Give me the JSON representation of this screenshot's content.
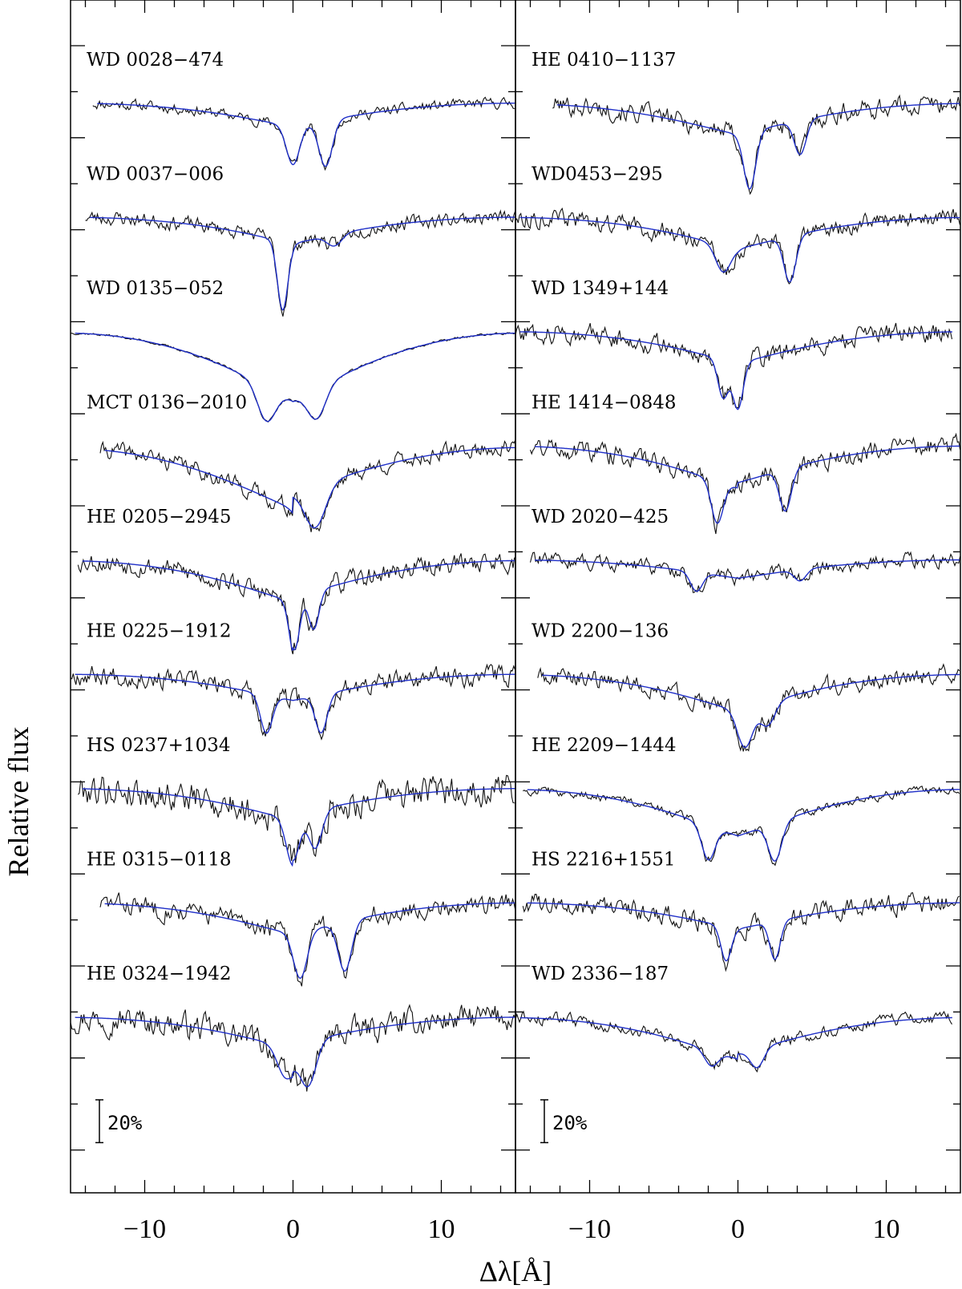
{
  "chart_data": {
    "type": "line",
    "ylabel": "Relative flux",
    "xlabel": "Δλ[Å]",
    "xlim": [
      -15,
      15
    ],
    "xticks": [
      -10,
      0,
      10
    ],
    "grid": false,
    "colors": {
      "observed": "#111111",
      "model": "#1f2fc8",
      "axes": "#000000"
    },
    "scale_bar": {
      "label": "20%",
      "fraction": 0.2
    },
    "panels": [
      {
        "spectra": [
          {
            "name": "WD 0028−474",
            "x_start": -13.5,
            "x_end": 15,
            "cont_left": 0.45,
            "cont_right": 0.45,
            "width": 5,
            "lines": [
              {
                "pos": 0,
                "depth": 0.5,
                "w": 0.45
              },
              {
                "pos": 2.2,
                "depth": 0.6,
                "w": 0.45
              }
            ],
            "noise": 0.22,
            "seed": 11
          },
          {
            "name": "WD 0037−006",
            "x_start": -14,
            "x_end": 15,
            "cont_left": 0.5,
            "cont_right": 0.5,
            "width": 4,
            "lines": [
              {
                "pos": -0.7,
                "depth": 0.9,
                "w": 0.35
              },
              {
                "pos": 2.8,
                "depth": 0.15,
                "w": 0.5
              }
            ],
            "noise": 0.3,
            "seed": 23
          },
          {
            "name": "WD 0135−052",
            "x_start": -15,
            "x_end": 15,
            "cont_left": 1.3,
            "cont_right": 1.3,
            "width": 6,
            "lines": [
              {
                "pos": -1.8,
                "depth": 0.45,
                "w": 0.6
              },
              {
                "pos": 1.6,
                "depth": 0.4,
                "w": 0.6
              }
            ],
            "noise": 0.05,
            "seed": 37
          },
          {
            "name": "MCT 0136−2010",
            "x_start": -13,
            "x_end": 15,
            "cont_left": 1.2,
            "cont_right": 0.9,
            "width": 8,
            "lines": [
              {
                "pos": 1.5,
                "depth": 0.55,
                "w": 0.7
              }
            ],
            "noise": 0.35,
            "seed": 41
          },
          {
            "name": "HE 0205−2945",
            "x_start": -14.5,
            "x_end": 15,
            "cont_left": 0.8,
            "cont_right": 0.7,
            "width": 6,
            "lines": [
              {
                "pos": 0.1,
                "depth": 0.7,
                "w": 0.35
              },
              {
                "pos": 1.4,
                "depth": 0.5,
                "w": 0.35
              }
            ],
            "noise": 0.42,
            "seed": 53
          },
          {
            "name": "HE 0225−1912",
            "x_start": -15,
            "x_end": 15,
            "cont_left": 0.5,
            "cont_right": 0.5,
            "width": 5,
            "lines": [
              {
                "pos": -1.8,
                "depth": 0.5,
                "w": 0.4
              },
              {
                "pos": 1.9,
                "depth": 0.5,
                "w": 0.4
              }
            ],
            "noise": 0.42,
            "seed": 67
          },
          {
            "name": "HS 0237+1034",
            "x_start": -14.5,
            "x_end": 15,
            "cont_left": 0.6,
            "cont_right": 0.5,
            "width": 5,
            "lines": [
              {
                "pos": 0,
                "depth": 0.6,
                "w": 0.45
              },
              {
                "pos": 1.5,
                "depth": 0.5,
                "w": 0.45
              }
            ],
            "noise": 0.65,
            "seed": 79
          },
          {
            "name": "HE 0315−0118",
            "x_start": -13,
            "x_end": 15,
            "cont_left": 0.6,
            "cont_right": 0.6,
            "width": 5,
            "lines": [
              {
                "pos": 0.5,
                "depth": 0.6,
                "w": 0.45
              },
              {
                "pos": 3.5,
                "depth": 0.65,
                "w": 0.45
              }
            ],
            "noise": 0.42,
            "seed": 83
          },
          {
            "name": "HE 0324−1942",
            "x_start": -15,
            "x_end": 15,
            "cont_left": 0.6,
            "cont_right": 0.5,
            "width": 6,
            "lines": [
              {
                "pos": -0.5,
                "depth": 0.4,
                "w": 0.55
              },
              {
                "pos": 1,
                "depth": 0.6,
                "w": 0.55
              }
            ],
            "noise": 0.55,
            "seed": 97
          }
        ]
      },
      {
        "spectra": [
          {
            "name": "HE 0410−1137",
            "x_start": -12.5,
            "x_end": 15,
            "cont_left": 0.6,
            "cont_right": 0.6,
            "width": 6,
            "lines": [
              {
                "pos": 0.8,
                "depth": 0.75,
                "w": 0.4
              },
              {
                "pos": 4.2,
                "depth": 0.45,
                "w": 0.4
              }
            ],
            "noise": 0.42,
            "seed": 101
          },
          {
            "name": "WD0453−295",
            "x_start": -15,
            "x_end": 15,
            "cont_left": 0.6,
            "cont_right": 0.6,
            "width": 5,
            "lines": [
              {
                "pos": -1,
                "depth": 0.35,
                "w": 0.5
              },
              {
                "pos": 3.5,
                "depth": 0.6,
                "w": 0.4
              }
            ],
            "noise": 0.38,
            "seed": 113
          },
          {
            "name": "WD 1349+144",
            "x_start": -15,
            "x_end": 14.5,
            "cont_left": 0.6,
            "cont_right": 0.6,
            "width": 5,
            "lines": [
              {
                "pos": -1,
                "depth": 0.5,
                "w": 0.35
              },
              {
                "pos": 0,
                "depth": 0.6,
                "w": 0.35
              }
            ],
            "noise": 0.42,
            "seed": 127
          },
          {
            "name": "HE 1414−0848",
            "x_start": -14,
            "x_end": 15,
            "cont_left": 0.8,
            "cont_right": 0.7,
            "width": 5,
            "lines": [
              {
                "pos": -1.4,
                "depth": 0.55,
                "w": 0.4
              },
              {
                "pos": 3.2,
                "depth": 0.55,
                "w": 0.4
              }
            ],
            "noise": 0.42,
            "seed": 131
          },
          {
            "name": "WD 2020−425",
            "x_start": -14,
            "x_end": 15,
            "cont_left": 0.35,
            "cont_right": 0.35,
            "width": 5,
            "lines": [
              {
                "pos": -2.8,
                "depth": 0.25,
                "w": 0.4
              },
              {
                "pos": 4.2,
                "depth": 0.15,
                "w": 0.4
              }
            ],
            "noise": 0.3,
            "seed": 139
          },
          {
            "name": "WD 2200−136",
            "x_start": -13.5,
            "x_end": 15,
            "cont_left": 0.7,
            "cont_right": 0.7,
            "width": 5,
            "lines": [
              {
                "pos": 0.5,
                "depth": 0.5,
                "w": 0.5
              },
              {
                "pos": 2,
                "depth": 0.3,
                "w": 0.5
              }
            ],
            "noise": 0.38,
            "seed": 149
          },
          {
            "name": "HE 2209−1444",
            "x_start": -14.5,
            "x_end": 15,
            "cont_left": 0.9,
            "cont_right": 0.9,
            "width": 6,
            "lines": [
              {
                "pos": -2,
                "depth": 0.45,
                "w": 0.45
              },
              {
                "pos": 2.5,
                "depth": 0.5,
                "w": 0.45
              }
            ],
            "noise": 0.18,
            "seed": 157
          },
          {
            "name": "HS 2216+1551",
            "x_start": -14.5,
            "x_end": 15,
            "cont_left": 0.5,
            "cont_right": 0.5,
            "width": 5,
            "lines": [
              {
                "pos": -0.8,
                "depth": 0.45,
                "w": 0.35
              },
              {
                "pos": 2.5,
                "depth": 0.5,
                "w": 0.35
              }
            ],
            "noise": 0.42,
            "seed": 163
          },
          {
            "name": "WD 2336−187",
            "x_start": -15,
            "x_end": 14.5,
            "cont_left": 0.8,
            "cont_right": 0.7,
            "width": 6,
            "lines": [
              {
                "pos": -1.8,
                "depth": 0.2,
                "w": 0.45
              },
              {
                "pos": 1.3,
                "depth": 0.25,
                "w": 0.45
              }
            ],
            "noise": 0.25,
            "seed": 173
          }
        ]
      }
    ]
  }
}
